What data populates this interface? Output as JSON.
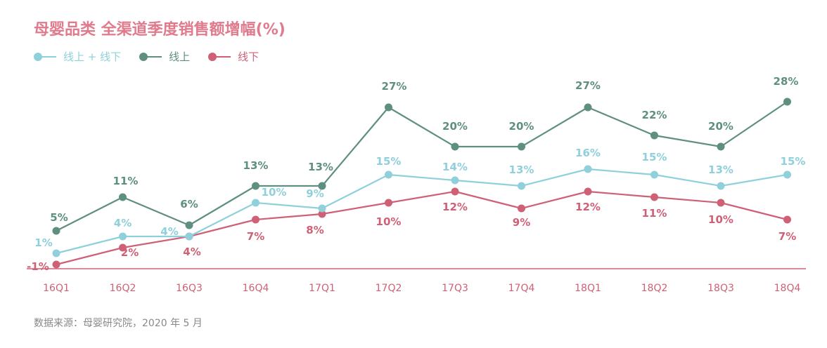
{
  "chart_data": {
    "type": "line",
    "title": "母婴品类 全渠道季度销售额增幅(%)",
    "categories": [
      "16Q1",
      "16Q2",
      "16Q3",
      "16Q4",
      "17Q1",
      "17Q2",
      "17Q3",
      "17Q4",
      "18Q1",
      "18Q2",
      "18Q3",
      "18Q4"
    ],
    "series": [
      {
        "name": "线上+线下",
        "color": "#8fd0db",
        "values": [
          1,
          4,
          4,
          10,
          9,
          15,
          14,
          13,
          16,
          15,
          13,
          15
        ],
        "labels": [
          "1%",
          "4%",
          "4%",
          "10%",
          "9%",
          "15%",
          "14%",
          "13%",
          "16%",
          "15%",
          "13%",
          "15%"
        ]
      },
      {
        "name": "线上",
        "color": "#5e8f80",
        "values": [
          5,
          11,
          6,
          13,
          13,
          27,
          20,
          20,
          27,
          22,
          20,
          28
        ],
        "labels": [
          "5%",
          "11%",
          "6%",
          "13%",
          "13%",
          "27%",
          "20%",
          "20%",
          "27%",
          "22%",
          "20%",
          "28%"
        ]
      },
      {
        "name": "线下",
        "color": "#cf6176",
        "values": [
          -1,
          2,
          4,
          7,
          8,
          10,
          12,
          9,
          12,
          11,
          10,
          7
        ],
        "labels": [
          "-1%",
          "2%",
          "4%",
          "7%",
          "8%",
          "10%",
          "12%",
          "9%",
          "12%",
          "11%",
          "10%",
          "7%"
        ]
      }
    ],
    "xlabel": "",
    "ylabel": "",
    "ylim": [
      -1,
      28
    ],
    "grid": false,
    "legend": "top-left"
  },
  "legend": {
    "items": [
      {
        "label": "线上 + 线下",
        "color": "#8fd0db"
      },
      {
        "label": "线上",
        "color": "#5e8f80"
      },
      {
        "label": "线下",
        "color": "#cf6176"
      }
    ]
  },
  "source": "数据来源：母婴研究院，2020 年 5 月"
}
